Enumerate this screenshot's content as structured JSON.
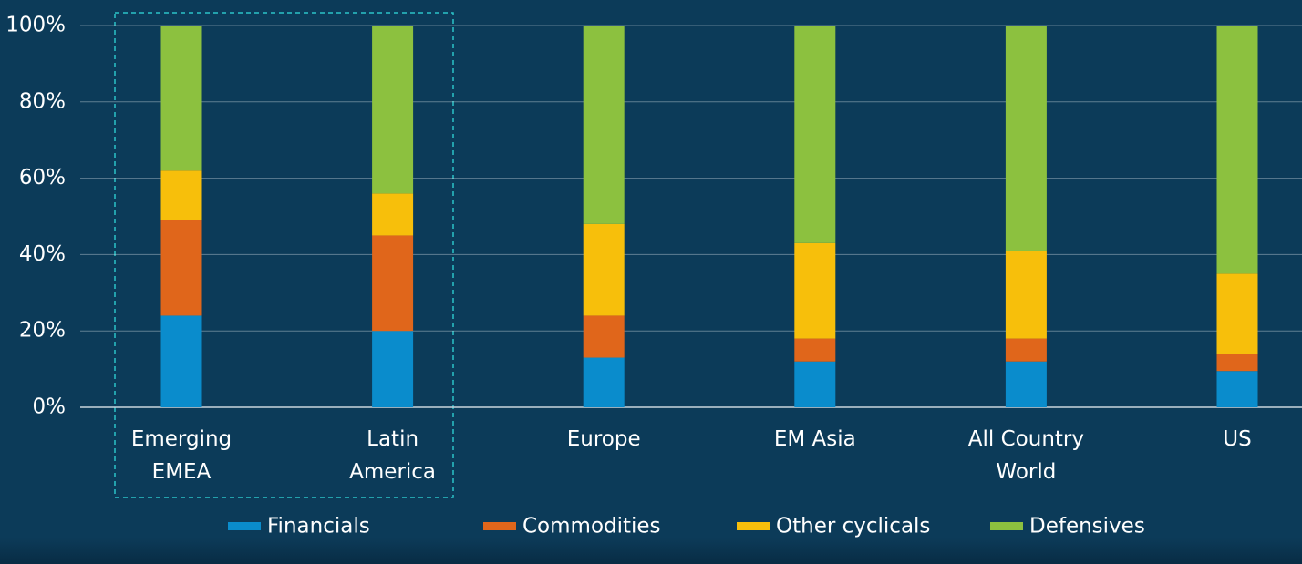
{
  "chart_data": {
    "type": "stacked_bar",
    "categories": [
      "Emerging\nEMEA",
      "Latin\nAmerica",
      "Europe",
      "EM Asia",
      "All Country\nWorld",
      "US"
    ],
    "series": [
      {
        "name": "Financials",
        "color": "#0a8ccc",
        "values": [
          24,
          20,
          13,
          12,
          12,
          9.5
        ]
      },
      {
        "name": "Commodities",
        "color": "#e0661b",
        "values": [
          25,
          25,
          11,
          6,
          6,
          4.5
        ]
      },
      {
        "name": "Other cyclicals",
        "color": "#f7bf0b",
        "values": [
          13,
          11,
          24,
          25,
          23,
          21
        ]
      },
      {
        "name": "Defensives",
        "color": "#8cc13f",
        "values": [
          38,
          44,
          52,
          57,
          59,
          65
        ]
      }
    ],
    "ylim": [
      0,
      100
    ],
    "yticks": [
      {
        "value": 0,
        "label": "0%"
      },
      {
        "value": 20,
        "label": "20%"
      },
      {
        "value": 40,
        "label": "40%"
      },
      {
        "value": 60,
        "label": "60%"
      },
      {
        "value": 80,
        "label": "80%"
      },
      {
        "value": 100,
        "label": "100%"
      }
    ],
    "grid": true,
    "legend": "bottom"
  }
}
